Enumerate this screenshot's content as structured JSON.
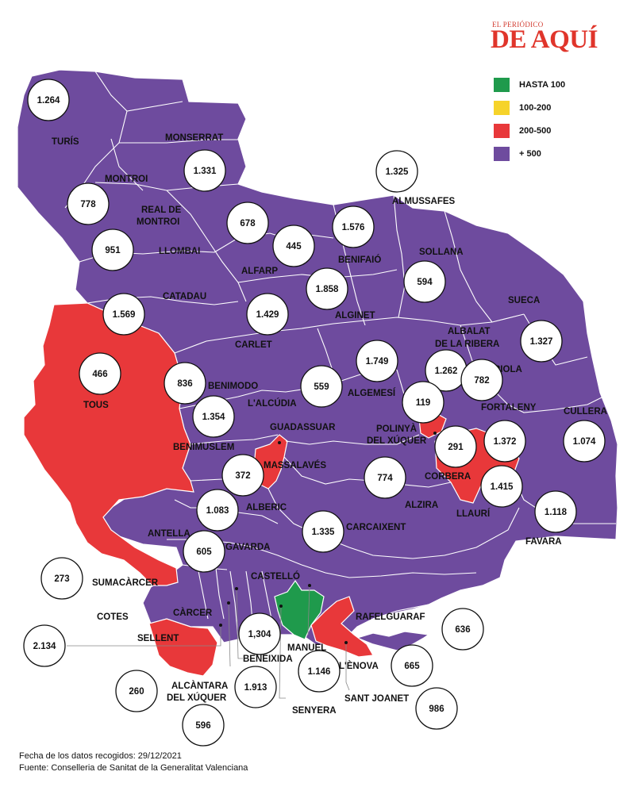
{
  "brand": {
    "small": "EL PERIÓDICO",
    "big": "DE AQUÍ"
  },
  "legend": [
    {
      "label": "HASTA 100",
      "color": "#1f9a4c"
    },
    {
      "label": "100-200",
      "color": "#f6d32a"
    },
    {
      "label": "200-500",
      "color": "#e8383a"
    },
    {
      "label": "+ 500",
      "color": "#6e4b9e"
    }
  ],
  "colors": {
    "purple": "#6e4b9e",
    "red": "#e8383a",
    "green": "#1f9a4c",
    "border": "#ffffff"
  },
  "municipalities": [
    "TURÍS",
    "MONSERRAT",
    "MONTROI",
    "REAL DE",
    "MONTROI",
    "LLOMBAI",
    "ALFARP",
    "BENIFAIÓ",
    "SOLLANA",
    "ALMUSSAFES",
    "CATADAU",
    "CARLET",
    "ALGINET",
    "SUECA",
    "ALBALAT",
    "DE LA RIBERA",
    "RIOLA",
    "TOUS",
    "BENIMODO",
    "L'ALCÚDIA",
    "ALGEMESÍ",
    "POLINYÀ",
    "DEL XÚQUER",
    "FORTALENY",
    "CULLERA",
    "GUADASSUAR",
    "BENIMUSLEM",
    "MASSALAVÉS",
    "CORBERA",
    "ALBERIC",
    "ALZIRA",
    "LLAURÍ",
    "CARCAIXENT",
    "FAVARA",
    "ANTELLA",
    "GAVARDA",
    "SUMACÀRCER",
    "CASTELLÓ",
    "COTES",
    "CÀRCER",
    "RAFELGUARAF",
    "SELLENT",
    "MANUEL",
    "BENEIXIDA",
    "L'ÈNOVA",
    "ALCÀNTARA",
    "DEL XÚQUER",
    "SANT JOANET",
    "SENYERA"
  ],
  "bubbles": [
    "1.264",
    "1.331",
    "1.325",
    "778",
    "678",
    "1.576",
    "951",
    "445",
    "594",
    "1.858",
    "1.569",
    "1.429",
    "1.327",
    "1.749",
    "1.262",
    "782",
    "466",
    "836",
    "559",
    "119",
    "1.354",
    "1.074",
    "291",
    "1.372",
    "372",
    "774",
    "1.415",
    "1.083",
    "1.118",
    "1.335",
    "605",
    "273",
    "636",
    "1,304",
    "2.134",
    "665",
    "1.146",
    "1.913",
    "260",
    "986",
    "596"
  ],
  "footer": {
    "line1": "Fecha de los datos recogidos: 29/12/2021",
    "line2": "Fuente: Conselleria de Sanitat de la Generalitat Valenciana"
  }
}
